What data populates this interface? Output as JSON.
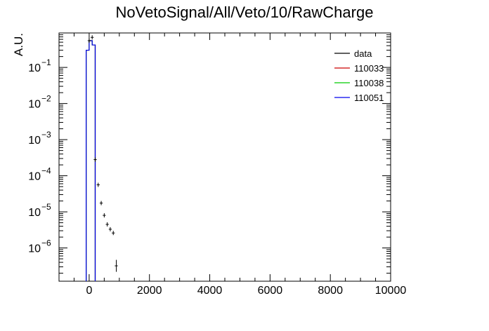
{
  "chart_data": {
    "type": "line",
    "title": "NoVetoSignal/All/Veto/10/RawCharge",
    "xlabel": "",
    "ylabel": "A.U.",
    "xlim": [
      -1000,
      10000
    ],
    "ylim": [
      1.2e-07,
      0.9
    ],
    "yscale": "log",
    "grid": false,
    "legend_position": "top-right",
    "x_ticks": [
      0,
      2000,
      4000,
      6000,
      8000,
      10000
    ],
    "x_tick_labels": [
      "0",
      "2000",
      "4000",
      "6000",
      "8000",
      "10000"
    ],
    "y_ticks": [
      1e-06,
      1e-05,
      0.0001,
      0.001,
      0.01,
      0.1
    ],
    "y_tick_labels": [
      {
        "base": "10",
        "exp": "−6"
      },
      {
        "base": "10",
        "exp": "−5"
      },
      {
        "base": "10",
        "exp": "−4"
      },
      {
        "base": "10",
        "exp": "−3"
      },
      {
        "base": "10",
        "exp": "−2"
      },
      {
        "base": "10",
        "exp": "−1"
      }
    ],
    "legend": [
      {
        "name": "data",
        "color": "#000000"
      },
      {
        "name": "110033",
        "color": "#cc0000"
      },
      {
        "name": "110038",
        "color": "#00cc00"
      },
      {
        "name": "110051",
        "color": "#0000ee"
      }
    ],
    "series": [
      {
        "name": "data",
        "style": "points-with-errors",
        "color": "#000000",
        "points": [
          {
            "x": 0,
            "y": 0.55,
            "xerr": 50,
            "yerr_lo": 0.0,
            "yerr_hi": 0.0
          },
          {
            "x": 100,
            "y": 0.68,
            "xerr": 50,
            "yerr_lo": 0.0,
            "yerr_hi": 0.0
          },
          {
            "x": 200,
            "y": 0.00028,
            "xerr": 50,
            "yerr_lo": 0.0,
            "yerr_hi": 0.0
          },
          {
            "x": 300,
            "y": 5.6e-05,
            "xerr": 50,
            "yerr_lo": 0.0,
            "yerr_hi": 0.0
          },
          {
            "x": 400,
            "y": 1.75e-05,
            "xerr": 50,
            "yerr_lo": 1e-06,
            "yerr_hi": 1e-06
          },
          {
            "x": 500,
            "y": 8e-06,
            "xerr": 50,
            "yerr_lo": 5e-07,
            "yerr_hi": 5e-07
          },
          {
            "x": 600,
            "y": 4.5e-06,
            "xerr": 50,
            "yerr_lo": 4e-07,
            "yerr_hi": 4e-07
          },
          {
            "x": 700,
            "y": 3.3e-06,
            "xerr": 50,
            "yerr_lo": 3.5e-07,
            "yerr_hi": 3.5e-07
          },
          {
            "x": 800,
            "y": 2.6e-06,
            "xerr": 50,
            "yerr_lo": 3e-07,
            "yerr_hi": 3e-07
          },
          {
            "x": 900,
            "y": 3.2e-07,
            "xerr": 50,
            "yerr_lo": 1.1e-07,
            "yerr_hi": 1.3e-07
          }
        ]
      },
      {
        "name": "110033",
        "style": "step",
        "color": "#cc0000",
        "bins": [
          {
            "lo": -100,
            "hi": 0,
            "y": 0.3
          },
          {
            "lo": 0,
            "hi": 100,
            "y": 0.55
          },
          {
            "lo": 100,
            "hi": 200,
            "y": 0.42
          }
        ]
      },
      {
        "name": "110038",
        "style": "step",
        "color": "#00cc00",
        "bins": [
          {
            "lo": -100,
            "hi": 0,
            "y": 0.3
          },
          {
            "lo": 0,
            "hi": 100,
            "y": 0.55
          },
          {
            "lo": 100,
            "hi": 200,
            "y": 0.42
          }
        ]
      },
      {
        "name": "110051",
        "style": "step",
        "color": "#0000ee",
        "bins": [
          {
            "lo": -100,
            "hi": 0,
            "y": 0.3
          },
          {
            "lo": 0,
            "hi": 100,
            "y": 0.55
          },
          {
            "lo": 100,
            "hi": 200,
            "y": 0.42
          }
        ]
      }
    ]
  }
}
